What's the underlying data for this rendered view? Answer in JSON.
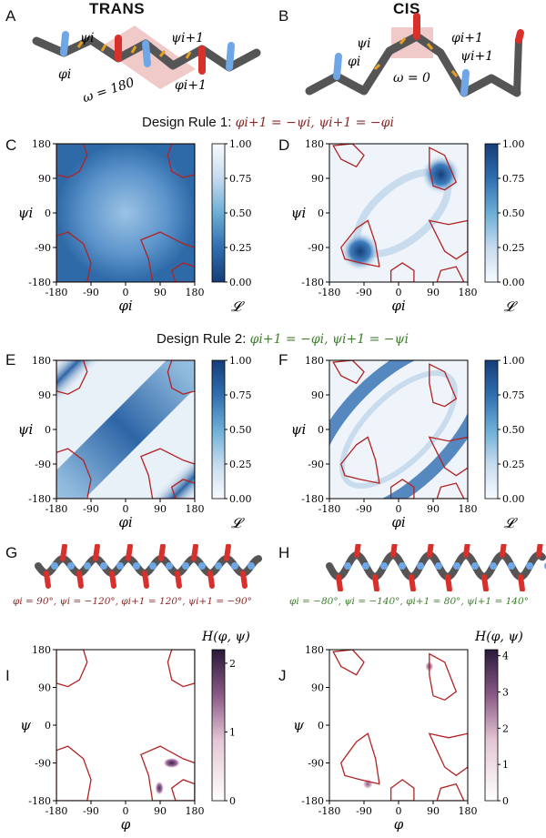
{
  "panels": {
    "A": {
      "letter": "A",
      "title": "TRANS",
      "annotations": {
        "psi_i": "ψi",
        "psi_i1": "ψi+1",
        "phi_i": "φi",
        "phi_i1": "φi+1",
        "omega": "ω = 180"
      }
    },
    "B": {
      "letter": "B",
      "title": "CIS",
      "annotations": {
        "psi_i": "ψi",
        "psi_i1": "ψi+1",
        "phi_i": "φi",
        "phi_i1": "φi+1",
        "omega": "ω = 0"
      }
    },
    "C": {
      "letter": "C"
    },
    "D": {
      "letter": "D"
    },
    "E": {
      "letter": "E"
    },
    "F": {
      "letter": "F"
    },
    "G": {
      "letter": "G",
      "params": "φi = 90°, ψi = −120°, φi+1 = 120°, ψi+1 = −90°"
    },
    "H": {
      "letter": "H",
      "params": "φi = −80°, ψi = −140°, φi+1 = 80°, ψi+1 = 140°"
    },
    "I": {
      "letter": "I"
    },
    "J": {
      "letter": "J"
    }
  },
  "rules": {
    "rule1": {
      "label": "Design Rule 1:",
      "equation": "φi+1 = −ψi, ψi+1 = −φi",
      "color": "#8b2a2a"
    },
    "rule2": {
      "label": "Design Rule 2:",
      "equation": "φi+1 = −φi, ψi+1 = −ψi",
      "color": "#3f7f2f"
    }
  },
  "colors": {
    "contour": "#b22222",
    "blue_dark": "#1f4e8c",
    "blue_light": "#f5f9fd",
    "purple_dark": "#2a1a3a"
  },
  "axis": {
    "ticks": [
      "-180",
      "-90",
      "0",
      "90",
      "180"
    ],
    "xlabel_L": "φi",
    "ylabel_L": "ψi",
    "xlabel_H": "φ",
    "ylabel_H": "ψ"
  },
  "colorbars": {
    "L": {
      "label": "𝓛",
      "ticks": [
        "1.00",
        "0.75",
        "0.50",
        "0.25",
        "0.00"
      ]
    },
    "HI": {
      "label": "H(φ, ψ)",
      "ticks": [
        "2",
        "1",
        "0"
      ]
    },
    "HJ": {
      "label": "H(φ, ψ)",
      "ticks": [
        "4",
        "3",
        "2",
        "1",
        "0"
      ]
    }
  },
  "chart_data": [
    {
      "panel": "C",
      "type": "heatmap",
      "xlabel": "φi",
      "ylabel": "ψi",
      "xlim": [
        -180,
        180
      ],
      "ylim": [
        -180,
        180
      ],
      "colorbar_range": [
        0,
        1
      ],
      "colorbar_label": "𝓛",
      "description_values": "smooth field ~0.7 with maximum near center"
    },
    {
      "panel": "D",
      "type": "heatmap",
      "xlabel": "φi",
      "ylabel": "ψi",
      "xlim": [
        -180,
        180
      ],
      "ylim": [
        -180,
        180
      ],
      "colorbar_range": [
        0,
        1
      ],
      "colorbar_label": "𝓛",
      "peaks": [
        {
          "x": 110,
          "y": 100
        },
        {
          "x": -100,
          "y": -100
        }
      ]
    },
    {
      "panel": "E",
      "type": "heatmap",
      "xlabel": "φi",
      "ylabel": "ψi",
      "xlim": [
        -180,
        180
      ],
      "ylim": [
        -180,
        180
      ],
      "colorbar_range": [
        0,
        1
      ],
      "colorbar_label": "𝓛"
    },
    {
      "panel": "F",
      "type": "heatmap",
      "xlabel": "φi",
      "ylabel": "ψi",
      "xlim": [
        -180,
        180
      ],
      "ylim": [
        -180,
        180
      ],
      "colorbar_range": [
        0,
        1
      ],
      "colorbar_label": "𝓛"
    },
    {
      "panel": "I",
      "type": "heatmap",
      "xlabel": "φ",
      "ylabel": "ψ",
      "xlim": [
        -180,
        180
      ],
      "ylim": [
        -180,
        180
      ],
      "colorbar_range": [
        0,
        2.2
      ],
      "colorbar_label": "H(φ, ψ)",
      "peaks": [
        {
          "x": 120,
          "y": -90
        },
        {
          "x": 90,
          "y": -150
        }
      ]
    },
    {
      "panel": "J",
      "type": "heatmap",
      "xlabel": "φ",
      "ylabel": "ψ",
      "xlim": [
        -180,
        180
      ],
      "ylim": [
        -180,
        180
      ],
      "colorbar_range": [
        0,
        4.2
      ],
      "colorbar_label": "H(φ, ψ)",
      "peaks": [
        {
          "x": 80,
          "y": 140
        },
        {
          "x": -80,
          "y": -140
        }
      ]
    }
  ]
}
